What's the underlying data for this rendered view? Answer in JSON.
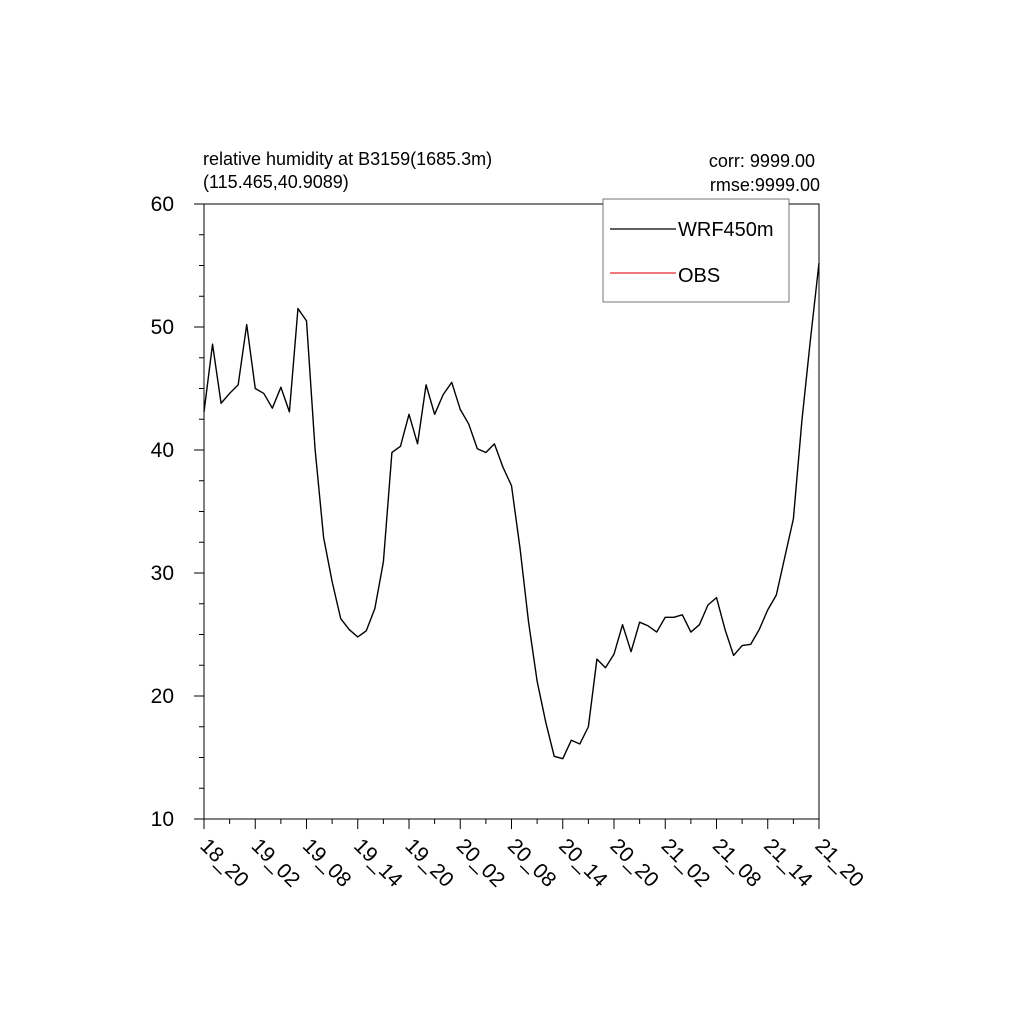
{
  "chart_data": {
    "type": "line",
    "title_line1": "relative humidity at B3159(1685.3m)",
    "title_line2": "(115.465,40.9089)",
    "stats_corr": "corr: 9999.00",
    "stats_rmse": "rmse:9999.00",
    "ylim": [
      10,
      60
    ],
    "y_ticks": [
      10,
      20,
      30,
      40,
      50,
      60
    ],
    "y_tick_labels": [
      "10",
      "20",
      "30",
      "40",
      "50",
      "60"
    ],
    "y_minor_step": 2.5,
    "x_ticks": [
      "18_20",
      "19_02",
      "19_08",
      "19_14",
      "19_20",
      "20_02",
      "20_08",
      "20_14",
      "20_20",
      "21_02",
      "21_08",
      "21_14",
      "21_20"
    ],
    "x_tick_step": 6,
    "x_count": 73,
    "legend": {
      "position": "top-right",
      "entries": [
        "WRF450m",
        "OBS"
      ]
    },
    "colors": {
      "WRF450m": "#000000",
      "OBS": "#e8262a"
    },
    "series": [
      {
        "name": "WRF450m",
        "values": [
          43.1,
          48.6,
          43.8,
          44.6,
          45.3,
          50.2,
          45.0,
          44.6,
          43.4,
          45.1,
          43.1,
          51.5,
          50.5,
          40.1,
          32.9,
          29.3,
          26.3,
          25.4,
          24.8,
          25.3,
          27.1,
          30.9,
          39.8,
          40.3,
          42.9,
          40.5,
          45.3,
          42.9,
          44.5,
          45.5,
          43.3,
          42.1,
          40.1,
          39.8,
          40.5,
          38.6,
          37.1,
          32.0,
          26.0,
          21.2,
          17.9,
          15.1,
          14.9,
          16.4,
          16.1,
          17.5,
          23.0,
          22.3,
          23.4,
          25.8,
          23.6,
          26.0,
          25.7,
          25.2,
          26.4,
          26.4,
          26.6,
          25.2,
          25.8,
          27.4,
          28.0,
          25.4,
          23.3,
          24.1,
          24.2,
          25.4,
          27.0,
          28.2,
          31.3,
          34.4,
          42.4,
          49.0,
          55.2
        ]
      },
      {
        "name": "OBS",
        "values": []
      }
    ]
  }
}
